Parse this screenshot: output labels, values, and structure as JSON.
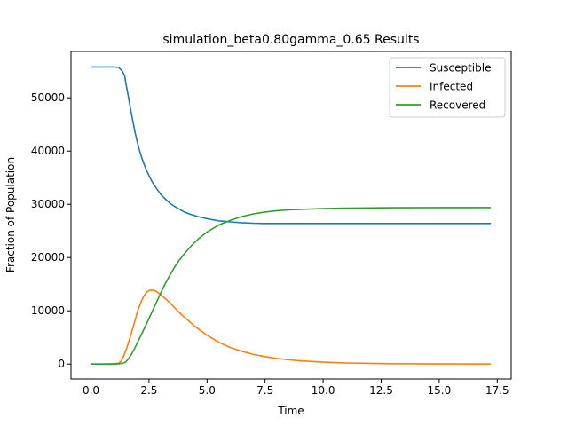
{
  "chart_data": {
    "type": "line",
    "title": "simulation_beta0.80gamma_0.65 Results",
    "xlabel": "Time",
    "ylabel": "Fraction of Population",
    "xlim": [
      -0.86,
      18.1
    ],
    "ylim": [
      -2800,
      58700
    ],
    "xticks": [
      0.0,
      2.5,
      5.0,
      7.5,
      10.0,
      12.5,
      15.0,
      17.5
    ],
    "xtick_labels": [
      "0.0",
      "2.5",
      "5.0",
      "7.5",
      "10.0",
      "12.5",
      "15.0",
      "17.5"
    ],
    "yticks": [
      0,
      10000,
      20000,
      30000,
      40000,
      50000
    ],
    "ytick_labels": [
      "0",
      "10000",
      "20000",
      "30000",
      "40000",
      "50000"
    ],
    "grid": false,
    "legend_position": "top-right",
    "series": [
      {
        "name": "Susceptible",
        "color": "#1f77b4",
        "x": [
          0.0,
          0.5,
          1.0,
          1.2,
          1.35,
          1.45,
          1.5,
          1.6,
          1.7,
          1.8,
          1.9,
          2.0,
          2.1,
          2.2,
          2.3,
          2.4,
          2.5,
          2.6,
          2.7,
          2.8,
          2.9,
          3.0,
          3.2,
          3.4,
          3.6,
          3.8,
          4.0,
          4.3,
          4.6,
          5.0,
          5.5,
          6.0,
          6.5,
          7.0,
          7.5,
          8.0,
          9.0,
          10.0,
          12.0,
          15.0,
          17.2
        ],
        "y": [
          55800,
          55800,
          55800,
          55700,
          55000,
          54200,
          52800,
          50500,
          48000,
          45700,
          43500,
          41600,
          40000,
          38600,
          37400,
          36300,
          35400,
          34500,
          33800,
          33100,
          32500,
          31900,
          31000,
          30200,
          29600,
          29100,
          28600,
          28100,
          27700,
          27300,
          26900,
          26700,
          26550,
          26450,
          26400,
          26400,
          26400,
          26400,
          26400,
          26400,
          26400
        ]
      },
      {
        "name": "Infected",
        "color": "#ff7f0e",
        "x": [
          0.0,
          0.5,
          1.0,
          1.2,
          1.3,
          1.4,
          1.5,
          1.6,
          1.7,
          1.8,
          1.9,
          2.0,
          2.1,
          2.2,
          2.3,
          2.4,
          2.5,
          2.6,
          2.7,
          2.8,
          2.9,
          3.0,
          3.2,
          3.4,
          3.6,
          3.8,
          4.0,
          4.5,
          5.0,
          5.5,
          6.0,
          6.5,
          7.0,
          7.5,
          8.0,
          9.0,
          10.0,
          11.0,
          12.0,
          13.0,
          15.0,
          17.2
        ],
        "y": [
          0,
          0,
          50,
          150,
          600,
          1400,
          2500,
          3800,
          5200,
          6700,
          8200,
          9800,
          11000,
          12100,
          12900,
          13500,
          13800,
          13900,
          13850,
          13700,
          13400,
          13000,
          12300,
          11500,
          10600,
          9700,
          8900,
          7000,
          5400,
          4100,
          3100,
          2400,
          1800,
          1400,
          1050,
          600,
          350,
          200,
          120,
          70,
          30,
          10
        ]
      },
      {
        "name": "Recovered",
        "color": "#2ca02c",
        "x": [
          0.0,
          0.5,
          1.0,
          1.2,
          1.4,
          1.5,
          1.6,
          1.7,
          1.8,
          1.9,
          2.0,
          2.2,
          2.4,
          2.6,
          2.8,
          3.0,
          3.2,
          3.4,
          3.6,
          3.8,
          4.0,
          4.3,
          4.6,
          5.0,
          5.5,
          6.0,
          6.5,
          7.0,
          7.5,
          8.0,
          8.5,
          9.0,
          10.0,
          11.0,
          12.0,
          13.0,
          15.0,
          17.2
        ],
        "y": [
          0,
          0,
          0,
          50,
          200,
          400,
          900,
          1500,
          2300,
          3100,
          4000,
          5800,
          7600,
          9500,
          11400,
          13300,
          15100,
          16700,
          18200,
          19500,
          20600,
          22100,
          23400,
          24800,
          26100,
          27000,
          27700,
          28200,
          28550,
          28800,
          28950,
          29050,
          29200,
          29280,
          29320,
          29350,
          29370,
          29380
        ]
      }
    ]
  }
}
